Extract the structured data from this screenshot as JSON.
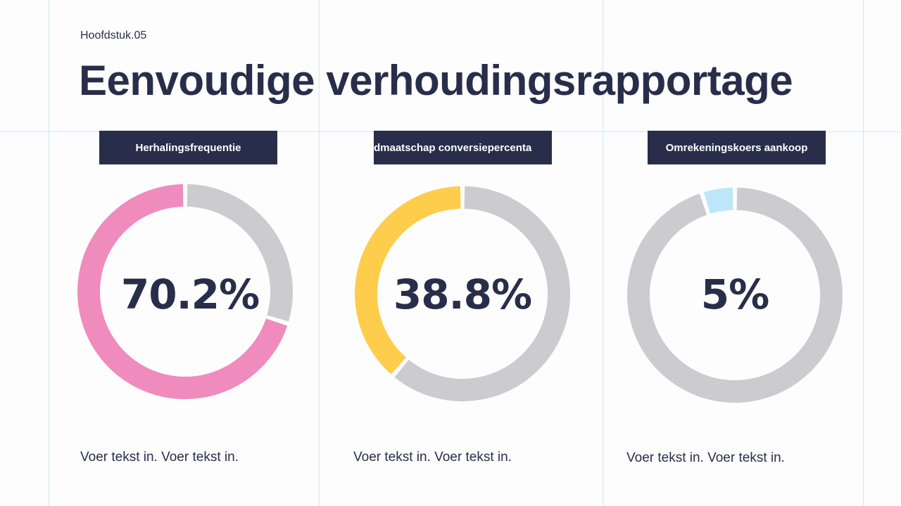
{
  "header": {
    "chapter": "Hoofdstuk.05",
    "title": "Eenvoudige verhoudingsrapportage"
  },
  "chart_data": [
    {
      "type": "pie",
      "variant": "donut",
      "title": "Herhalingsfrequentie",
      "value": 70.2,
      "label": "70.2%",
      "color": "#f08bbd",
      "rest_color": "#cccbcf",
      "caption": "Voer tekst in. Voer tekst in."
    },
    {
      "type": "pie",
      "variant": "donut",
      "title": "dmaatschap conversiepercenta",
      "value": 38.8,
      "label": "38.8%",
      "color": "#fecd4c",
      "rest_color": "#cccbcf",
      "caption": "Voer tekst in. Voer tekst in."
    },
    {
      "type": "pie",
      "variant": "donut",
      "title": "Omrekeningskoers aankoop",
      "value": 5,
      "label": "5%",
      "color": "#bde6fb",
      "rest_color": "#cccbcf",
      "caption": "Voer tekst in. Voer tekst in."
    }
  ]
}
